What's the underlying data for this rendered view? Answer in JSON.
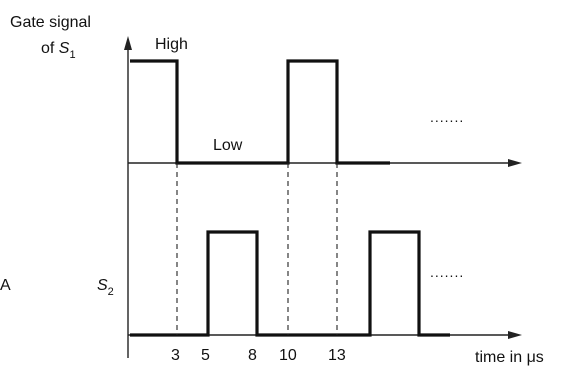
{
  "labels": {
    "gate_signal_line1": "Gate signal",
    "gate_signal_of": "of ",
    "s1_var": "S",
    "s1_sub": "1",
    "s2_var": "S",
    "s2_sub": "2",
    "high": "High",
    "low": "Low",
    "time_axis": "time in μs",
    "side_letter": "A",
    "ellipsis": "......."
  },
  "ticks": [
    "3",
    "5",
    "8",
    "10",
    "13"
  ],
  "signals": {
    "s1_high_intervals": [
      [
        0,
        3
      ],
      [
        10,
        13
      ]
    ],
    "s2_high_intervals": [
      [
        5,
        8
      ],
      [
        15,
        18
      ]
    ],
    "ticks_us": [
      3,
      5,
      8,
      10,
      13
    ]
  }
}
